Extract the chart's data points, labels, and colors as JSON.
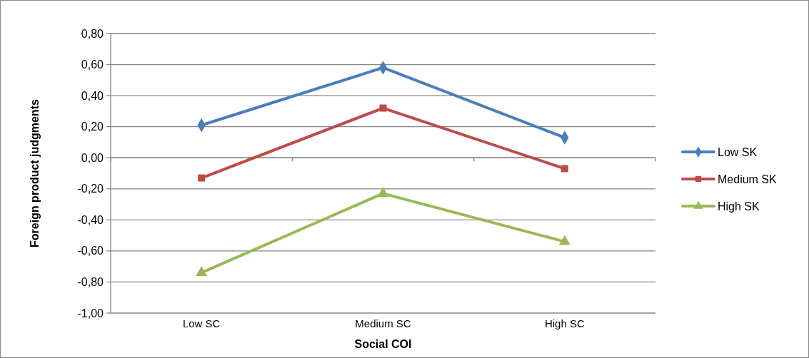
{
  "chart_data": {
    "type": "line",
    "xlabel": "Social COI",
    "ylabel": "Foreign product judgments",
    "categories": [
      "Low SC",
      "Medium SC",
      "High SC"
    ],
    "series": [
      {
        "name": "Low SK",
        "color": "#4a7ebb",
        "marker": "diamond",
        "values": [
          0.21,
          0.58,
          0.13
        ]
      },
      {
        "name": "Medium SK",
        "color": "#be4b48",
        "marker": "square",
        "values": [
          -0.13,
          0.32,
          -0.07
        ]
      },
      {
        "name": "High SK",
        "color": "#98b954",
        "marker": "triangle",
        "values": [
          -0.74,
          -0.23,
          -0.54
        ]
      }
    ],
    "ylim": [
      -1,
      0.8
    ],
    "yticks": [
      {
        "value": -1,
        "label": "-1,00"
      },
      {
        "value": -0.8,
        "label": "-0,80"
      },
      {
        "value": -0.6,
        "label": "-0,60"
      },
      {
        "value": -0.4,
        "label": "-0,40"
      },
      {
        "value": -0.2,
        "label": "-0,20"
      },
      {
        "value": 0,
        "label": "0,00"
      },
      {
        "value": 0.2,
        "label": "0,20"
      },
      {
        "value": 0.4,
        "label": "0,40"
      },
      {
        "value": 0.6,
        "label": "0,60"
      },
      {
        "value": 0.8,
        "label": "0,80"
      }
    ],
    "grid": "y",
    "legend": "right",
    "line_style": "solid"
  }
}
